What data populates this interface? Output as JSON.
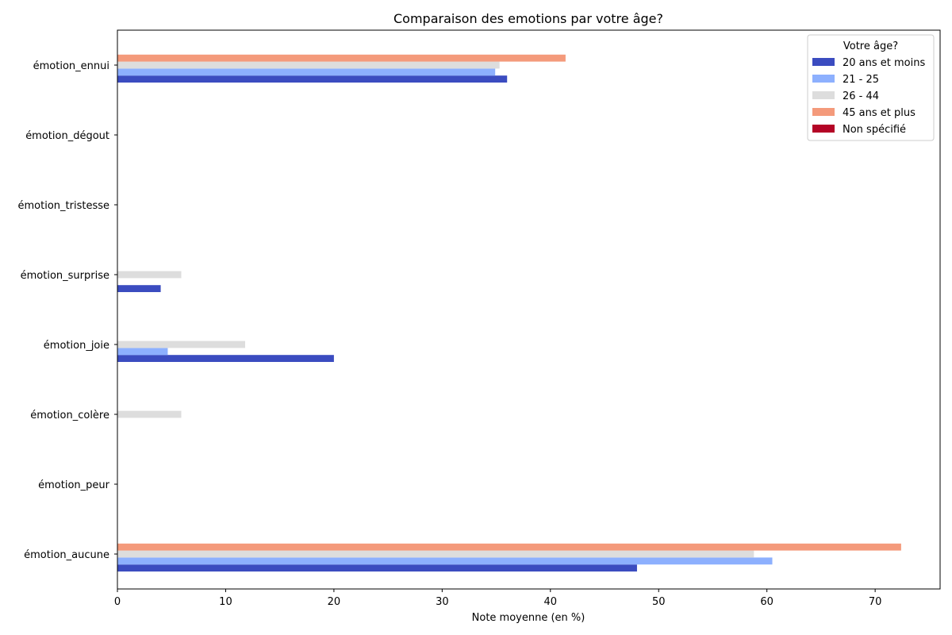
{
  "chart_data": {
    "type": "bar",
    "orientation": "horizontal",
    "title": "Comparaison des emotions par votre âge?",
    "xlabel": "Note moyenne (en %)",
    "ylabel": "",
    "xlim": [
      0,
      76
    ],
    "xticks": [
      0,
      10,
      20,
      30,
      40,
      50,
      60,
      70
    ],
    "grid": false,
    "legend": {
      "title": "Votre âge?",
      "placement": "top-right"
    },
    "categories": [
      "émotion_ennui",
      "émotion_dégout",
      "émotion_tristesse",
      "émotion_surprise",
      "émotion_joie",
      "émotion_colère",
      "émotion_peur",
      "émotion_aucune"
    ],
    "series": [
      {
        "name": "20 ans et moins",
        "color": "#3b4cc0",
        "values": [
          36.0,
          0,
          0,
          4.0,
          20.0,
          0,
          0,
          48.0
        ]
      },
      {
        "name": "21 - 25",
        "color": "#8db0fe",
        "values": [
          34.9,
          0,
          0,
          0,
          4.65,
          0,
          0,
          60.5
        ]
      },
      {
        "name": "26 - 44",
        "color": "#dddddd",
        "values": [
          35.3,
          0,
          0,
          5.9,
          11.8,
          5.9,
          0,
          58.8
        ]
      },
      {
        "name": "45 ans et plus",
        "color": "#f49a7b",
        "values": [
          41.4,
          0,
          0,
          0,
          0,
          0,
          0,
          72.4
        ]
      },
      {
        "name": "Non spécifié",
        "color": "#b40426",
        "values": [
          0,
          0,
          0,
          0,
          0,
          0,
          0,
          0
        ]
      }
    ]
  }
}
